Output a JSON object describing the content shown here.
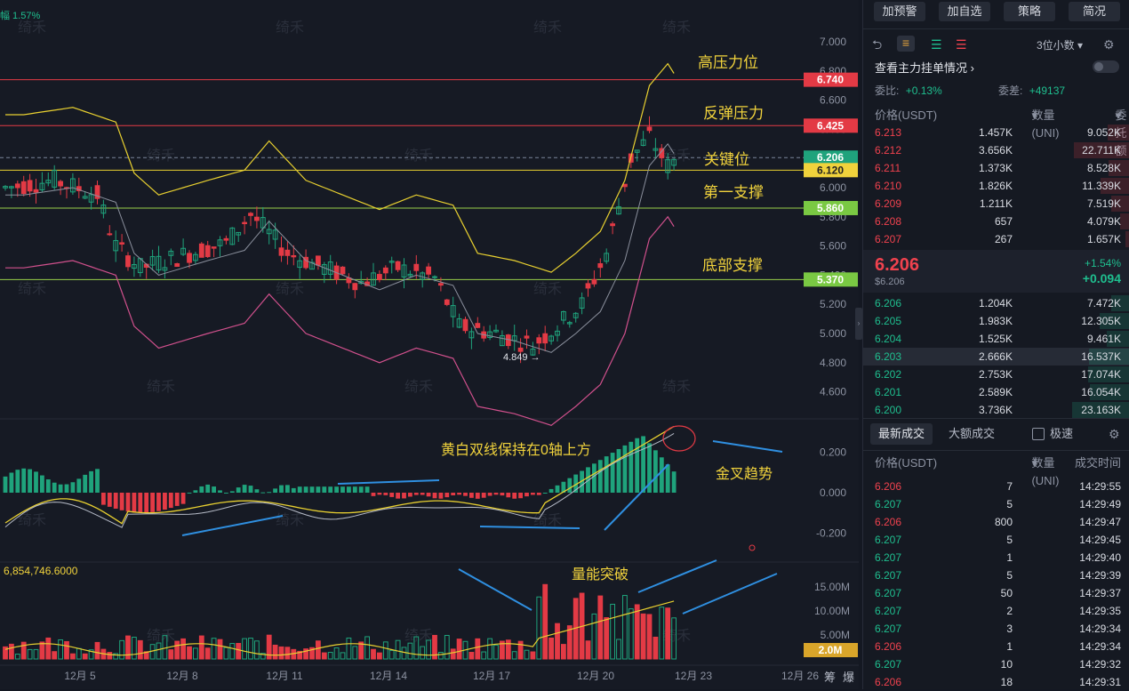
{
  "chart": {
    "top_label": "幅",
    "top_value": "1.57%",
    "watermark": "绮禾",
    "price_axis": [
      "7.000",
      "6.800",
      "6.600",
      "6.400",
      "6.200",
      "6.000",
      "5.800",
      "5.600",
      "5.400",
      "5.200",
      "5.000",
      "4.800",
      "4.600"
    ],
    "macd_axis": [
      "0.200",
      "0.000",
      "-0.200"
    ],
    "vol_axis": [
      "15.00M",
      "10.00M",
      "5.00M"
    ],
    "date_axis": [
      "12月 5",
      "12月 8",
      "12月 11",
      "12月 14",
      "12月 17",
      "12月 20",
      "12月 23",
      "12月 26"
    ],
    "price_tags": [
      {
        "id": "tag_6740",
        "value": "6.740",
        "color": "#e33a45"
      },
      {
        "id": "tag_6425",
        "value": "6.425",
        "color": "#e33a45"
      },
      {
        "id": "tag_6206",
        "value": "6.206",
        "color": "#1fa37c"
      },
      {
        "id": "tag_6120",
        "value": "6.120",
        "color": "#f0d23c"
      },
      {
        "id": "tag_5860",
        "value": "5.860",
        "color": "#7ac943"
      },
      {
        "id": "tag_5370",
        "value": "5.370",
        "color": "#7ac943"
      }
    ],
    "annotations": {
      "high_pressure": "高压力位",
      "rebound_pressure": "反弹压力",
      "key_level": "关键位",
      "first_support": "第一支撑",
      "bottom_support": "底部支撑",
      "macd_note": "黄白双线保持在0轴上方",
      "golden_cross": "金叉趋势",
      "volume_break": "量能突破"
    },
    "low_label": "4.849",
    "vol_header": "6,854,746.6000",
    "vol_tag": "2.0M",
    "corner_labels": [
      "筹",
      "爆"
    ]
  },
  "toolbar": {
    "buttons": [
      "加预警",
      "加自选",
      "策略",
      "简况"
    ],
    "decimals": "3位小数"
  },
  "orderbook": {
    "title": "查看主力挂单情况",
    "weibi_label": "委比:",
    "weibi_value": "+0.13%",
    "weicha_label": "委差:",
    "weicha_value": "+49137",
    "headers": [
      "价格(USDT)",
      "数量 (UNI)",
      "委托额"
    ],
    "asks": [
      {
        "price": "6.213",
        "qty": "1.457K",
        "amt": "9.052K",
        "depth": 0.25
      },
      {
        "price": "6.212",
        "qty": "3.656K",
        "amt": "22.711K",
        "depth": 0.63
      },
      {
        "price": "6.211",
        "qty": "1.373K",
        "amt": "8.528K",
        "depth": 0.24
      },
      {
        "price": "6.210",
        "qty": "1.826K",
        "amt": "11.339K",
        "depth": 0.33
      },
      {
        "price": "6.209",
        "qty": "1.211K",
        "amt": "7.519K",
        "depth": 0.21
      },
      {
        "price": "6.208",
        "qty": "657",
        "amt": "4.079K",
        "depth": 0.11
      },
      {
        "price": "6.207",
        "qty": "267",
        "amt": "1.657K",
        "depth": 0.05
      }
    ],
    "last_price": "6.206",
    "last_price_sub": "$6.206",
    "change_pct": "+1.54%",
    "change_abs": "+0.094",
    "bids": [
      {
        "price": "6.206",
        "qty": "1.204K",
        "amt": "7.472K",
        "depth": 0.21
      },
      {
        "price": "6.205",
        "qty": "1.983K",
        "amt": "12.305K",
        "depth": 0.34
      },
      {
        "price": "6.204",
        "qty": "1.525K",
        "amt": "9.461K",
        "depth": 0.26
      },
      {
        "price": "6.203",
        "qty": "2.666K",
        "amt": "16.537K",
        "depth": 0.46
      },
      {
        "price": "6.202",
        "qty": "2.753K",
        "amt": "17.074K",
        "depth": 0.47
      },
      {
        "price": "6.201",
        "qty": "2.589K",
        "amt": "16.054K",
        "depth": 0.45
      },
      {
        "price": "6.200",
        "qty": "3.736K",
        "amt": "23.163K",
        "depth": 0.65
      }
    ]
  },
  "trades": {
    "tab_latest": "最新成交",
    "tab_large": "大额成交",
    "fast_label": "极速",
    "headers": [
      "价格(USDT)",
      "数量(UNI)",
      "成交时间"
    ],
    "rows": [
      {
        "price": "6.206",
        "qty": "7",
        "time": "14:29:55",
        "side": "sell"
      },
      {
        "price": "6.207",
        "qty": "5",
        "time": "14:29:49",
        "side": "buy"
      },
      {
        "price": "6.206",
        "qty": "800",
        "time": "14:29:47",
        "side": "sell"
      },
      {
        "price": "6.207",
        "qty": "5",
        "time": "14:29:45",
        "side": "buy"
      },
      {
        "price": "6.207",
        "qty": "1",
        "time": "14:29:40",
        "side": "buy"
      },
      {
        "price": "6.207",
        "qty": "5",
        "time": "14:29:39",
        "side": "buy"
      },
      {
        "price": "6.207",
        "qty": "50",
        "time": "14:29:37",
        "side": "buy"
      },
      {
        "price": "6.207",
        "qty": "2",
        "time": "14:29:35",
        "side": "buy"
      },
      {
        "price": "6.207",
        "qty": "3",
        "time": "14:29:34",
        "side": "buy"
      },
      {
        "price": "6.206",
        "qty": "1",
        "time": "14:29:34",
        "side": "sell"
      },
      {
        "price": "6.207",
        "qty": "10",
        "time": "14:29:32",
        "side": "buy"
      },
      {
        "price": "6.206",
        "qty": "18",
        "time": "14:29:31",
        "side": "sell"
      }
    ]
  }
}
